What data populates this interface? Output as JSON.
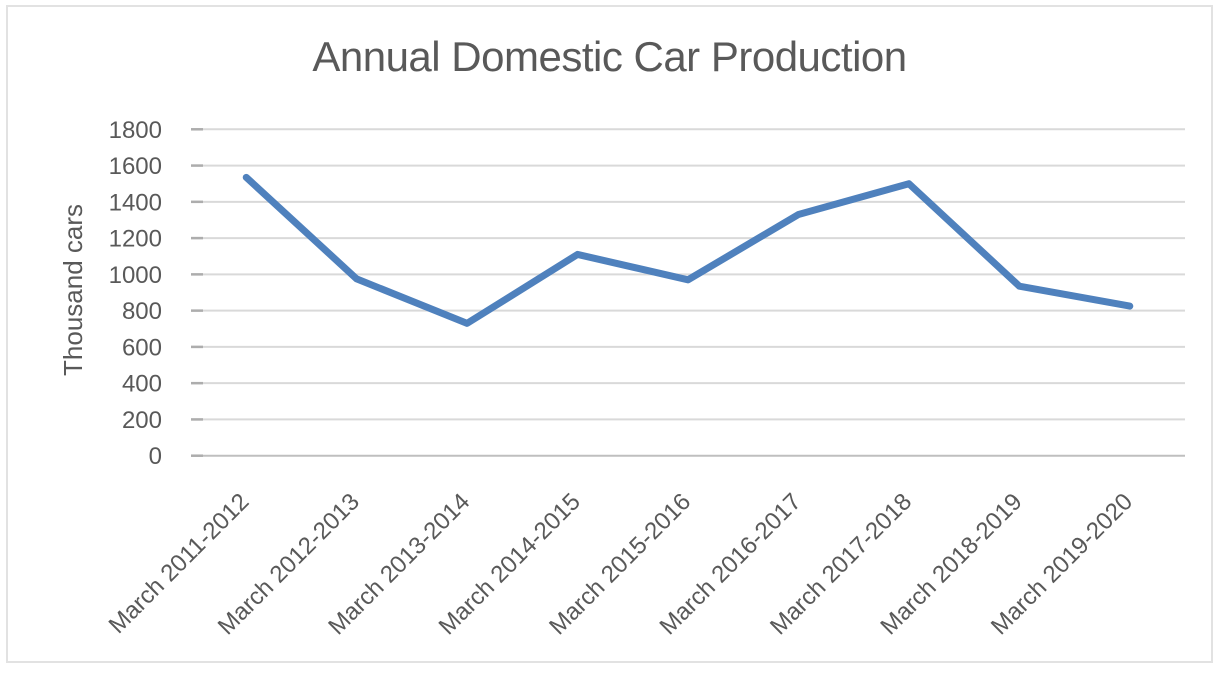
{
  "chart_data": {
    "type": "line",
    "title": "Annual Domestic Car Production",
    "xlabel": "",
    "ylabel": "Thousand cars",
    "categories": [
      "March 2011-2012",
      "March 2012-2013",
      "March 2013-2014",
      "March 2014-2015",
      "March 2015-2016",
      "March 2016-2017",
      "March 2017-2018",
      "March 2018-2019",
      "March 2019-2020"
    ],
    "values": [
      1535,
      975,
      730,
      1110,
      970,
      1330,
      1500,
      935,
      825
    ],
    "ylim": [
      0,
      1800
    ],
    "yticks": [
      1800,
      1600,
      1400,
      1200,
      1000,
      800,
      600,
      400,
      200,
      0
    ],
    "grid": true,
    "legend": "none",
    "colors": {
      "line": "#4F81BD",
      "grid": "#D9D9D9",
      "axis": "#BFBFBF",
      "tick_stub": "#ADADAD",
      "text": "#595959",
      "frame_border": "#E2E2E2"
    }
  }
}
